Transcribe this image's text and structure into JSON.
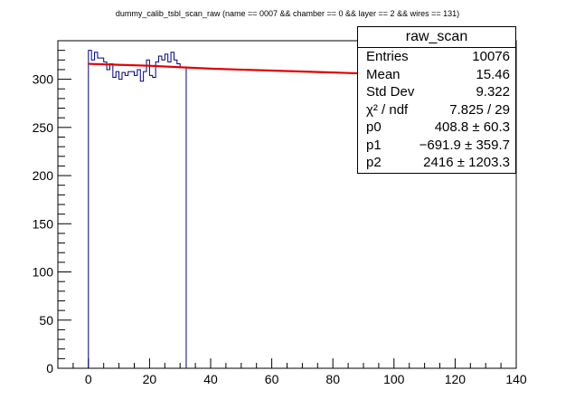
{
  "chart_data": {
    "type": "histogram",
    "title": "dummy_calib_tsbl_scan_raw  (name == 0007 && chamber == 0 && layer == 2 && wires == 131)",
    "xlim": [
      -10,
      140
    ],
    "ylim": [
      0,
      340
    ],
    "x_ticks": [
      0,
      20,
      40,
      60,
      80,
      100,
      120,
      140
    ],
    "y_ticks": [
      0,
      50,
      100,
      150,
      200,
      250,
      300
    ],
    "bins": {
      "x_low": [
        0,
        1,
        2,
        3,
        4,
        5,
        6,
        7,
        8,
        9,
        10,
        11,
        12,
        13,
        14,
        15,
        16,
        17,
        18,
        19,
        20,
        21,
        22,
        23,
        24,
        25,
        26,
        27,
        28,
        29,
        30,
        31
      ],
      "bin_width": 1,
      "counts": [
        330,
        320,
        328,
        322,
        322,
        318,
        310,
        316,
        302,
        308,
        300,
        307,
        304,
        308,
        308,
        304,
        310,
        298,
        308,
        320,
        304,
        302,
        318,
        324,
        320,
        326,
        318,
        328,
        320,
        316,
        312,
        312
      ]
    },
    "fit": {
      "function": "p0 + p1/x + p2/x^2 style smooth curve",
      "x": [
        0,
        20,
        40,
        60,
        80,
        100,
        120,
        130
      ],
      "y": [
        316,
        314,
        311,
        309,
        307,
        305,
        303,
        302
      ]
    },
    "stats": {
      "name": "raw_scan",
      "rows": [
        {
          "label": "Entries",
          "value": "10076"
        },
        {
          "label": "Mean",
          "value": "15.46"
        },
        {
          "label": "Std Dev",
          "value": "9.322"
        },
        {
          "label": "χ² / ndf",
          "value": "7.825 / 29"
        },
        {
          "label": "p0",
          "value": "408.8 ± 60.3"
        },
        {
          "label": "p1",
          "value": "−691.9 ± 359.7"
        },
        {
          "label": "p2",
          "value": "2416 ± 1203.3"
        }
      ]
    },
    "colors": {
      "histogram": "#000080",
      "fit": "#e00000",
      "axis": "#000000"
    }
  }
}
